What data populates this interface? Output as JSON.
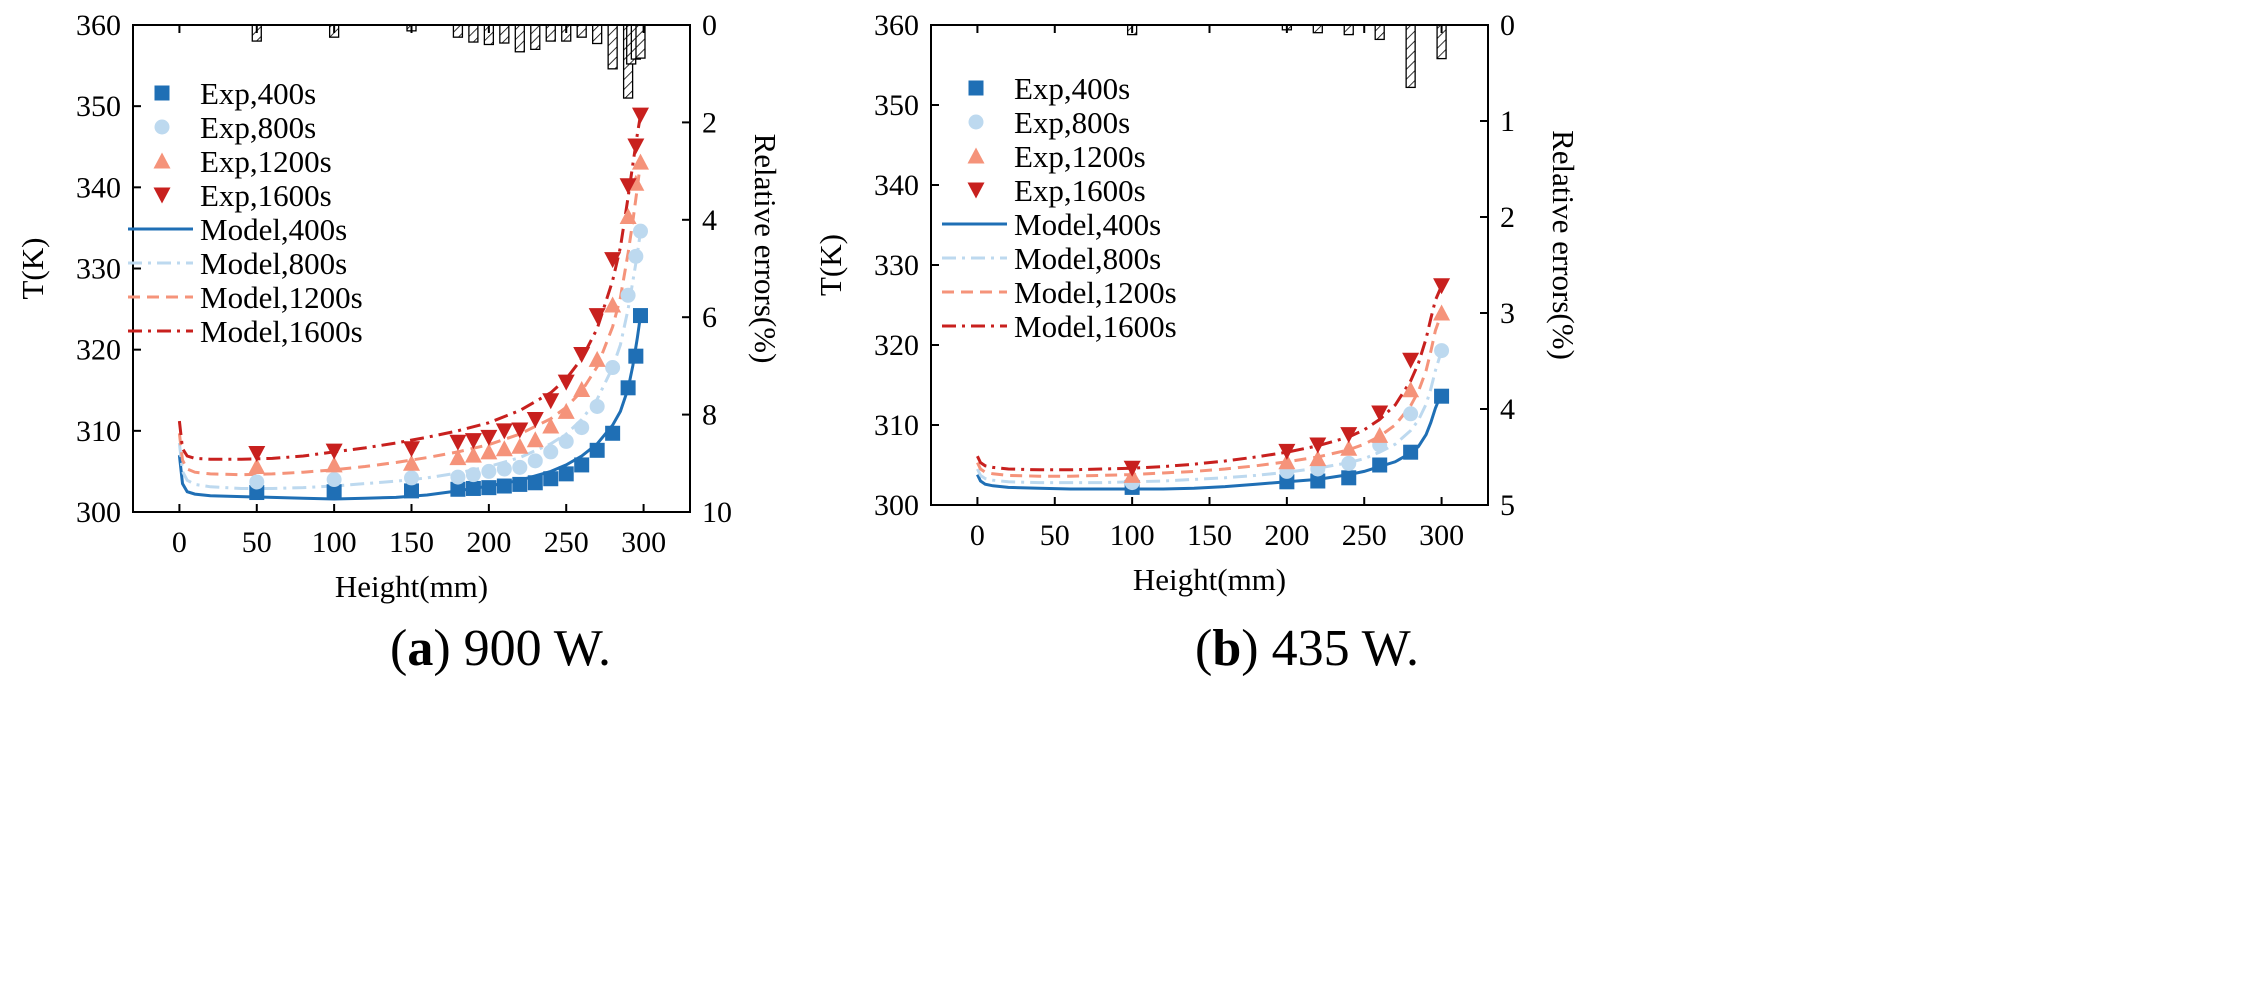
{
  "chart_data": [
    {
      "type": "line+scatter+bar",
      "caption_label": "a",
      "caption_text": " 900 W.",
      "xlabel": "Height(mm)",
      "ylabel": "T(K)",
      "y2label": "Relative errors(%)",
      "xlim": [
        -30,
        330
      ],
      "ylim": [
        300,
        360
      ],
      "y2lim": [
        0,
        10
      ],
      "y2_inverted": true,
      "xticks": [
        0,
        50,
        100,
        150,
        200,
        250,
        300
      ],
      "yticks": [
        300,
        310,
        320,
        330,
        340,
        350,
        360
      ],
      "y2ticks": [
        0,
        2,
        4,
        6,
        8,
        10
      ],
      "legend_position": "upper-left",
      "exp_series": [
        {
          "name": "Exp,400s",
          "color": "#1f6fb5",
          "marker": "square",
          "x": [
            50,
            100,
            150,
            180,
            190,
            200,
            210,
            220,
            230,
            240,
            250,
            260,
            270,
            280,
            290,
            295,
            298
          ],
          "y": [
            302.4,
            302.5,
            302.6,
            302.8,
            302.9,
            303.0,
            303.2,
            303.4,
            303.6,
            304.1,
            304.7,
            305.8,
            307.6,
            309.7,
            315.3,
            319.2,
            324.2
          ]
        },
        {
          "name": "Exp,800s",
          "color": "#bdd9ef",
          "marker": "circle",
          "x": [
            50,
            100,
            150,
            180,
            190,
            200,
            210,
            220,
            230,
            240,
            250,
            260,
            270,
            280,
            290,
            295,
            298
          ],
          "y": [
            303.7,
            304.0,
            304.2,
            304.3,
            304.6,
            305.0,
            305.3,
            305.5,
            306.3,
            307.4,
            308.7,
            310.4,
            313.0,
            317.8,
            326.7,
            331.5,
            334.6
          ]
        },
        {
          "name": "Exp,1200s",
          "color": "#f5937a",
          "marker": "triangle-up",
          "x": [
            50,
            100,
            150,
            180,
            190,
            200,
            210,
            220,
            230,
            240,
            250,
            260,
            270,
            280,
            290,
            295,
            298
          ],
          "y": [
            305.6,
            305.8,
            306.0,
            306.7,
            307.0,
            307.4,
            307.8,
            308.1,
            308.9,
            310.6,
            312.4,
            315.1,
            318.8,
            325.5,
            336.4,
            340.5,
            343.1
          ]
        },
        {
          "name": "Exp,1600s",
          "color": "#c8201e",
          "marker": "triangle-down",
          "x": [
            50,
            100,
            150,
            180,
            190,
            200,
            210,
            220,
            230,
            240,
            250,
            260,
            270,
            280,
            290,
            295,
            298
          ],
          "y": [
            307.2,
            307.5,
            307.8,
            308.6,
            308.8,
            309.2,
            310.0,
            310.1,
            311.4,
            313.7,
            316.0,
            319.4,
            324.2,
            331.1,
            340.2,
            345.1,
            348.9
          ]
        }
      ],
      "model_series": [
        {
          "name": "Model,400s",
          "color": "#1f6fb5",
          "dash": "solid",
          "x": [
            0,
            2,
            5,
            10,
            20,
            40,
            60,
            80,
            100,
            120,
            140,
            160,
            180,
            200,
            220,
            240,
            250,
            260,
            270,
            280,
            285,
            290,
            293,
            296,
            298
          ],
          "y": [
            307.0,
            303.5,
            302.5,
            302.2,
            302.0,
            301.9,
            301.8,
            301.7,
            301.6,
            301.7,
            301.8,
            302.1,
            302.6,
            303.2,
            303.9,
            305.0,
            305.8,
            306.9,
            308.4,
            310.7,
            312.4,
            315.2,
            318.0,
            321.5,
            324.2
          ]
        },
        {
          "name": "Model,800s",
          "color": "#bdd9ef",
          "dash": "dashdot",
          "x": [
            0,
            2,
            5,
            10,
            20,
            40,
            60,
            80,
            100,
            120,
            140,
            160,
            180,
            200,
            220,
            240,
            250,
            260,
            270,
            280,
            285,
            290,
            293,
            296,
            298
          ],
          "y": [
            308.5,
            305.0,
            303.9,
            303.4,
            303.1,
            302.9,
            302.9,
            303.0,
            303.2,
            303.5,
            303.8,
            304.2,
            304.8,
            305.6,
            306.7,
            308.4,
            309.6,
            311.4,
            313.9,
            317.8,
            320.6,
            325.0,
            328.4,
            331.8,
            334.6
          ]
        },
        {
          "name": "Model,1200s",
          "color": "#f5937a",
          "dash": "dashed",
          "x": [
            0,
            2,
            5,
            10,
            20,
            40,
            60,
            80,
            100,
            120,
            140,
            160,
            180,
            200,
            220,
            240,
            250,
            260,
            270,
            280,
            285,
            290,
            293,
            296,
            298
          ],
          "y": [
            309.7,
            306.4,
            305.3,
            304.9,
            304.7,
            304.6,
            304.7,
            304.9,
            305.2,
            305.6,
            306.1,
            306.7,
            307.4,
            308.3,
            309.6,
            311.5,
            312.9,
            314.9,
            317.9,
            322.8,
            326.4,
            331.9,
            335.8,
            340.0,
            343.1
          ]
        },
        {
          "name": "Model,1600s",
          "color": "#c8201e",
          "dash": "dashdot",
          "x": [
            0,
            2,
            5,
            10,
            20,
            40,
            60,
            80,
            100,
            120,
            140,
            160,
            180,
            200,
            220,
            240,
            250,
            260,
            270,
            280,
            285,
            290,
            293,
            296,
            298
          ],
          "y": [
            311.2,
            307.8,
            306.9,
            306.6,
            306.5,
            306.5,
            306.6,
            306.9,
            307.4,
            307.9,
            308.5,
            309.2,
            310.0,
            311.0,
            312.5,
            314.7,
            316.4,
            318.9,
            322.6,
            328.5,
            332.6,
            338.8,
            342.8,
            346.6,
            348.9
          ]
        }
      ],
      "error_bars": {
        "x": [
          50,
          100,
          150,
          180,
          190,
          200,
          210,
          220,
          230,
          240,
          250,
          260,
          270,
          280,
          290,
          292,
          295,
          298
        ],
        "values": [
          0.33,
          0.25,
          0.12,
          0.25,
          0.35,
          0.4,
          0.37,
          0.55,
          0.5,
          0.33,
          0.33,
          0.25,
          0.38,
          0.9,
          1.5,
          0.8,
          0.7,
          0.68
        ]
      }
    },
    {
      "type": "line+scatter+bar",
      "caption_label": "b",
      "caption_text": " 435 W.",
      "xlabel": "Height(mm)",
      "ylabel": "T(K)",
      "y2label": "Relative errors(%)",
      "xlim": [
        -30,
        330
      ],
      "ylim": [
        300,
        360
      ],
      "y2lim": [
        0,
        5
      ],
      "y2_inverted": true,
      "xticks": [
        0,
        50,
        100,
        150,
        200,
        250,
        300
      ],
      "yticks": [
        300,
        310,
        320,
        330,
        340,
        350,
        360
      ],
      "y2ticks": [
        0,
        1,
        2,
        3,
        4,
        5
      ],
      "legend_position": "upper-left",
      "exp_series": [
        {
          "name": "Exp,400s",
          "color": "#1f6fb5",
          "marker": "square",
          "x": [
            100,
            200,
            220,
            240,
            260,
            280,
            300
          ],
          "y": [
            302.2,
            302.9,
            303.0,
            303.4,
            305.0,
            306.6,
            313.6
          ]
        },
        {
          "name": "Exp,800s",
          "color": "#bdd9ef",
          "marker": "circle",
          "x": [
            100,
            200,
            220,
            240,
            260,
            280,
            300
          ],
          "y": [
            302.8,
            304.2,
            304.5,
            305.2,
            307.5,
            311.4,
            319.3
          ]
        },
        {
          "name": "Exp,1200s",
          "color": "#f5937a",
          "marker": "triangle-up",
          "x": [
            100,
            200,
            220,
            240,
            260,
            280,
            300
          ],
          "y": [
            303.7,
            305.4,
            305.8,
            307.1,
            308.7,
            314.4,
            324.0
          ]
        },
        {
          "name": "Exp,1600s",
          "color": "#c8201e",
          "marker": "triangle-down",
          "x": [
            100,
            200,
            220,
            240,
            260,
            280,
            300
          ],
          "y": [
            304.6,
            306.7,
            307.5,
            308.8,
            311.5,
            318.1,
            327.4
          ]
        }
      ],
      "model_series": [
        {
          "name": "Model,400s",
          "color": "#1f6fb5",
          "dash": "solid",
          "x": [
            0,
            2,
            5,
            10,
            20,
            40,
            60,
            80,
            100,
            120,
            140,
            160,
            180,
            200,
            220,
            240,
            250,
            260,
            270,
            280,
            285,
            290,
            293,
            296,
            300
          ],
          "y": [
            303.8,
            303.0,
            302.6,
            302.4,
            302.2,
            302.1,
            302.0,
            302.0,
            302.0,
            302.0,
            302.1,
            302.3,
            302.6,
            302.9,
            303.2,
            303.8,
            304.2,
            304.8,
            305.4,
            306.5,
            307.3,
            308.8,
            310.3,
            312.1,
            314.0
          ]
        },
        {
          "name": "Model,800s",
          "color": "#bdd9ef",
          "dash": "dashdot",
          "x": [
            0,
            2,
            5,
            10,
            20,
            40,
            60,
            80,
            100,
            120,
            140,
            160,
            180,
            200,
            220,
            240,
            250,
            260,
            270,
            280,
            285,
            290,
            293,
            296,
            300
          ],
          "y": [
            304.5,
            303.7,
            303.3,
            303.1,
            302.9,
            302.8,
            302.8,
            302.8,
            302.9,
            303.0,
            303.2,
            303.4,
            303.7,
            304.1,
            304.6,
            305.3,
            305.8,
            306.6,
            307.6,
            309.3,
            310.6,
            312.6,
            314.5,
            316.8,
            319.3
          ]
        },
        {
          "name": "Model,1200s",
          "color": "#f5937a",
          "dash": "dashed",
          "x": [
            0,
            2,
            5,
            10,
            20,
            40,
            60,
            80,
            100,
            120,
            140,
            160,
            180,
            200,
            220,
            240,
            250,
            260,
            270,
            280,
            285,
            290,
            293,
            296,
            300
          ],
          "y": [
            305.3,
            304.5,
            304.1,
            303.9,
            303.7,
            303.6,
            303.6,
            303.7,
            303.8,
            304.0,
            304.2,
            304.5,
            304.9,
            305.4,
            306.0,
            306.9,
            307.6,
            308.6,
            310.0,
            312.4,
            314.2,
            316.8,
            319.2,
            321.8,
            324.0
          ]
        },
        {
          "name": "Model,1600s",
          "color": "#c8201e",
          "dash": "dashdot",
          "x": [
            0,
            2,
            5,
            10,
            20,
            40,
            60,
            80,
            100,
            120,
            140,
            160,
            180,
            200,
            220,
            240,
            250,
            260,
            270,
            280,
            285,
            290,
            293,
            296,
            300
          ],
          "y": [
            306.1,
            305.3,
            304.9,
            304.7,
            304.5,
            304.4,
            304.4,
            304.5,
            304.6,
            304.8,
            305.1,
            305.5,
            306.0,
            306.6,
            307.4,
            308.5,
            309.4,
            310.7,
            312.5,
            315.5,
            317.7,
            320.8,
            323.3,
            325.6,
            327.4
          ]
        }
      ],
      "error_bars": {
        "x": [
          100,
          200,
          220,
          240,
          260,
          280,
          300
        ],
        "values": [
          0.1,
          0.05,
          0.08,
          0.1,
          0.15,
          0.65,
          0.35
        ]
      }
    }
  ]
}
